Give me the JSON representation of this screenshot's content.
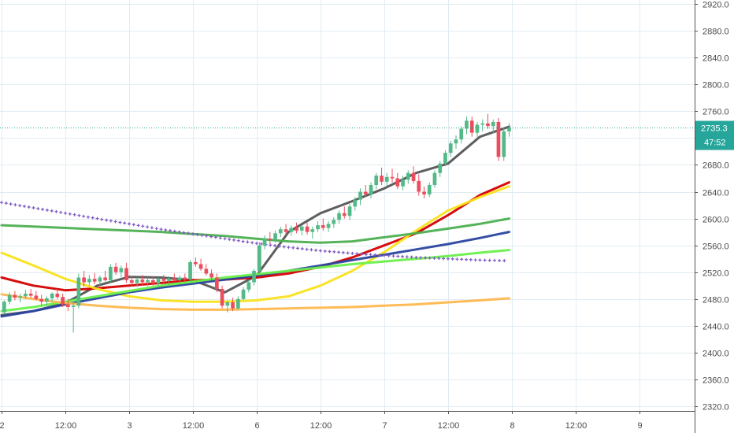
{
  "chart_data": {
    "type": "candlestick",
    "y_axis": {
      "position": "right",
      "ticks": [
        "2920.0",
        "2880.0",
        "2840.0",
        "2800.0",
        "2760.0",
        "2720.0",
        "2680.0",
        "2640.0",
        "2600.0",
        "2560.0",
        "2520.0",
        "2480.0",
        "2440.0",
        "2400.0",
        "2360.0",
        "2320.0"
      ],
      "ylim": [
        2313,
        2926
      ]
    },
    "x_axis": {
      "ticks": [
        {
          "label": "2",
          "t": 0
        },
        {
          "label": "12:00",
          "t": 12
        },
        {
          "label": "3",
          "t": 24
        },
        {
          "label": "12:00",
          "t": 36
        },
        {
          "label": "6",
          "t": 48
        },
        {
          "label": "12:00",
          "t": 60
        },
        {
          "label": "7",
          "t": 72
        },
        {
          "label": "12:00",
          "t": 84
        },
        {
          "label": "8",
          "t": 96
        },
        {
          "label": "12:00",
          "t": 108
        },
        {
          "label": "9",
          "t": 120
        }
      ],
      "xlim": [
        -0.3,
        130.4
      ]
    },
    "current_price": {
      "label": "2735.3",
      "value": 2735.3,
      "countdown": "47:52",
      "color": "#26a69a"
    },
    "grid": true,
    "colors": {
      "up": "#26a69a",
      "down": "#ef5350",
      "up_fill": "#53b987",
      "down_fill": "#eb4d5c"
    },
    "candles": [
      [
        0.5,
        2460,
        2478,
        2457,
        2476
      ],
      [
        1.5,
        2476,
        2490,
        2472,
        2486
      ],
      [
        2.5,
        2486,
        2492,
        2478,
        2482
      ],
      [
        3.5,
        2482,
        2488,
        2475,
        2484
      ],
      [
        4.5,
        2484,
        2494,
        2480,
        2488
      ],
      [
        5.5,
        2488,
        2495,
        2482,
        2485
      ],
      [
        6.5,
        2485,
        2492,
        2478,
        2480
      ],
      [
        7.5,
        2480,
        2486,
        2470,
        2476
      ],
      [
        8.5,
        2476,
        2484,
        2470,
        2481
      ],
      [
        9.5,
        2481,
        2490,
        2476,
        2488
      ],
      [
        10.5,
        2488,
        2495,
        2480,
        2483
      ],
      [
        11.5,
        2483,
        2488,
        2468,
        2472
      ],
      [
        12.5,
        2472,
        2480,
        2462,
        2468
      ],
      [
        13.5,
        2468,
        2476,
        2430,
        2470
      ],
      [
        14.5,
        2470,
        2518,
        2466,
        2512
      ],
      [
        15.5,
        2512,
        2522,
        2498,
        2505
      ],
      [
        16.5,
        2505,
        2516,
        2500,
        2510
      ],
      [
        17.5,
        2510,
        2519,
        2502,
        2506
      ],
      [
        18.5,
        2506,
        2515,
        2500,
        2512
      ],
      [
        19.5,
        2512,
        2522,
        2506,
        2508
      ],
      [
        20.5,
        2508,
        2532,
        2504,
        2528
      ],
      [
        21.5,
        2528,
        2534,
        2516,
        2520
      ],
      [
        22.5,
        2520,
        2530,
        2512,
        2526
      ],
      [
        23.5,
        2526,
        2534,
        2504,
        2508
      ],
      [
        24.5,
        2508,
        2514,
        2500,
        2504
      ],
      [
        25.5,
        2504,
        2512,
        2498,
        2509
      ],
      [
        26.5,
        2509,
        2516,
        2500,
        2505
      ],
      [
        27.5,
        2505,
        2512,
        2499,
        2508
      ],
      [
        28.5,
        2508,
        2514,
        2500,
        2503
      ],
      [
        29.5,
        2503,
        2512,
        2498,
        2510
      ],
      [
        30.5,
        2510,
        2516,
        2504,
        2507
      ],
      [
        31.5,
        2507,
        2514,
        2500,
        2511
      ],
      [
        32.5,
        2511,
        2518,
        2506,
        2508
      ],
      [
        33.5,
        2508,
        2515,
        2502,
        2512
      ],
      [
        34.5,
        2512,
        2518,
        2505,
        2509
      ],
      [
        35.5,
        2509,
        2538,
        2506,
        2535
      ],
      [
        36.5,
        2535,
        2542,
        2528,
        2532
      ],
      [
        37.5,
        2532,
        2540,
        2522,
        2525
      ],
      [
        38.5,
        2525,
        2532,
        2515,
        2518
      ],
      [
        39.5,
        2518,
        2524,
        2508,
        2512
      ],
      [
        40.5,
        2512,
        2518,
        2490,
        2495
      ],
      [
        41.5,
        2495,
        2500,
        2466,
        2470
      ],
      [
        42.5,
        2470,
        2478,
        2460,
        2475
      ],
      [
        43.5,
        2475,
        2482,
        2462,
        2466
      ],
      [
        44.5,
        2466,
        2484,
        2464,
        2480
      ],
      [
        45.5,
        2480,
        2498,
        2478,
        2494
      ],
      [
        46.5,
        2494,
        2508,
        2490,
        2505
      ],
      [
        47.5,
        2505,
        2525,
        2500,
        2522
      ],
      [
        48.5,
        2522,
        2565,
        2518,
        2560
      ],
      [
        49.5,
        2560,
        2575,
        2554,
        2570
      ],
      [
        50.5,
        2570,
        2580,
        2562,
        2568
      ],
      [
        51.5,
        2568,
        2582,
        2564,
        2578
      ],
      [
        52.5,
        2578,
        2588,
        2572,
        2584
      ],
      [
        53.5,
        2584,
        2592,
        2576,
        2580
      ],
      [
        54.5,
        2580,
        2590,
        2574,
        2586
      ],
      [
        55.5,
        2586,
        2594,
        2578,
        2582
      ],
      [
        56.5,
        2582,
        2590,
        2575,
        2588
      ],
      [
        57.5,
        2588,
        2594,
        2576,
        2580
      ],
      [
        58.5,
        2580,
        2588,
        2570,
        2584
      ],
      [
        59.5,
        2584,
        2596,
        2580,
        2590
      ],
      [
        60.5,
        2590,
        2600,
        2582,
        2586
      ],
      [
        61.5,
        2586,
        2596,
        2580,
        2592
      ],
      [
        62.5,
        2592,
        2602,
        2586,
        2598
      ],
      [
        63.5,
        2598,
        2612,
        2592,
        2608
      ],
      [
        64.5,
        2608,
        2618,
        2600,
        2604
      ],
      [
        65.5,
        2604,
        2622,
        2598,
        2618
      ],
      [
        66.5,
        2618,
        2632,
        2612,
        2628
      ],
      [
        67.5,
        2628,
        2645,
        2620,
        2640
      ],
      [
        68.5,
        2640,
        2650,
        2632,
        2636
      ],
      [
        69.5,
        2636,
        2654,
        2630,
        2650
      ],
      [
        70.5,
        2650,
        2668,
        2644,
        2664
      ],
      [
        71.5,
        2664,
        2676,
        2650,
        2655
      ],
      [
        72.5,
        2655,
        2668,
        2648,
        2662
      ],
      [
        73.5,
        2662,
        2674,
        2654,
        2660
      ],
      [
        74.5,
        2660,
        2668,
        2644,
        2648
      ],
      [
        75.5,
        2648,
        2664,
        2642,
        2658
      ],
      [
        76.5,
        2658,
        2672,
        2652,
        2668
      ],
      [
        77.5,
        2668,
        2678,
        2652,
        2656
      ],
      [
        78.5,
        2656,
        2666,
        2634,
        2640
      ],
      [
        79.5,
        2640,
        2648,
        2630,
        2636
      ],
      [
        80.5,
        2636,
        2654,
        2632,
        2650
      ],
      [
        81.5,
        2650,
        2672,
        2646,
        2668
      ],
      [
        82.5,
        2668,
        2686,
        2662,
        2682
      ],
      [
        83.5,
        2682,
        2702,
        2678,
        2698
      ],
      [
        84.5,
        2698,
        2716,
        2692,
        2712
      ],
      [
        85.5,
        2712,
        2724,
        2704,
        2718
      ],
      [
        86.5,
        2718,
        2738,
        2712,
        2734
      ],
      [
        87.5,
        2734,
        2752,
        2726,
        2746
      ],
      [
        88.5,
        2746,
        2752,
        2722,
        2728
      ],
      [
        89.5,
        2728,
        2744,
        2720,
        2740
      ],
      [
        90.5,
        2740,
        2748,
        2730,
        2742
      ],
      [
        91.5,
        2742,
        2756,
        2734,
        2738
      ],
      [
        92.5,
        2738,
        2748,
        2728,
        2744
      ],
      [
        93.5,
        2744,
        2750,
        2686,
        2692
      ],
      [
        94.5,
        2692,
        2735,
        2686,
        2730
      ],
      [
        95.5,
        2730,
        2742,
        2722,
        2735.3
      ]
    ],
    "series": [
      {
        "color": "#555555",
        "width": 3,
        "style": "solid",
        "x": [
          0,
          6,
          12,
          18,
          24,
          30,
          36,
          42,
          48,
          54,
          60,
          66,
          72,
          78,
          84,
          90,
          95.5
        ],
        "y": [
          2456,
          2462,
          2474,
          2500,
          2513,
          2512,
          2508,
          2490,
          2515,
          2580,
          2608,
          2626,
          2645,
          2668,
          2682,
          2722,
          2737
        ]
      },
      {
        "color": "#d50000",
        "width": 3,
        "style": "solid",
        "x": [
          0,
          6,
          12,
          18,
          24,
          30,
          36,
          42,
          48,
          54,
          60,
          66,
          72,
          78,
          84,
          90,
          95.5
        ],
        "y": [
          2512,
          2500,
          2493,
          2496,
          2500,
          2504,
          2508,
          2509,
          2512,
          2518,
          2528,
          2542,
          2560,
          2578,
          2605,
          2635,
          2654
        ]
      },
      {
        "color": "#f9e11b",
        "width": 3,
        "style": "solid",
        "x": [
          0,
          6,
          12,
          18,
          24,
          30,
          36,
          42,
          48,
          54,
          60,
          66,
          72,
          78,
          84,
          90,
          95.5
        ],
        "y": [
          2549,
          2530,
          2510,
          2495,
          2484,
          2478,
          2476,
          2476,
          2478,
          2484,
          2500,
          2522,
          2550,
          2582,
          2612,
          2632,
          2648
        ]
      },
      {
        "color": "#2a45a0",
        "width": 3,
        "style": "solid",
        "x": [
          0,
          6,
          12,
          18,
          24,
          30,
          36,
          42,
          48,
          54,
          60,
          66,
          72,
          78,
          84,
          90,
          95.5
        ],
        "y": [
          2454,
          2462,
          2472,
          2481,
          2490,
          2497,
          2503,
          2509,
          2515,
          2522,
          2530,
          2538,
          2546,
          2554,
          2562,
          2571,
          2580
        ]
      },
      {
        "color": "#4caf50",
        "width": 3,
        "style": "solid",
        "x": [
          0,
          6,
          12,
          18,
          24,
          30,
          36,
          42,
          48,
          54,
          60,
          66,
          72,
          78,
          84,
          90,
          95.5
        ],
        "y": [
          2590,
          2588,
          2586,
          2584,
          2582,
          2580,
          2577,
          2574,
          2570,
          2566,
          2564,
          2566,
          2572,
          2578,
          2585,
          2592,
          2600
        ]
      },
      {
        "color": "#69f04a",
        "width": 3,
        "style": "solid",
        "x": [
          0,
          6,
          12,
          18,
          24,
          30,
          36,
          42,
          48,
          54,
          60,
          66,
          72,
          78,
          84,
          90,
          95.5
        ],
        "y": [
          2462,
          2468,
          2476,
          2484,
          2492,
          2500,
          2506,
          2512,
          2517,
          2522,
          2527,
          2532,
          2536,
          2540,
          2544,
          2549,
          2553
        ]
      },
      {
        "color": "#ffb74d",
        "width": 3,
        "style": "solid",
        "x": [
          0,
          6,
          12,
          18,
          24,
          30,
          36,
          42,
          48,
          54,
          60,
          66,
          72,
          78,
          84,
          90,
          95.5
        ],
        "y": [
          2487,
          2480,
          2474,
          2470,
          2467,
          2465,
          2464,
          2464,
          2465,
          2466,
          2467,
          2468,
          2470,
          2472,
          2475,
          2478,
          2481
        ]
      },
      {
        "color": "#7e57c2",
        "width": 2,
        "style": "cross",
        "x": [
          0,
          6,
          12,
          18,
          24,
          30,
          36,
          42,
          48,
          54,
          60,
          66,
          72,
          78,
          84,
          90,
          95.5
        ],
        "y": [
          2624,
          2616,
          2608,
          2600,
          2592,
          2584,
          2577,
          2570,
          2563,
          2557,
          2552,
          2548,
          2545,
          2542,
          2540,
          2538,
          2537
        ]
      }
    ]
  }
}
